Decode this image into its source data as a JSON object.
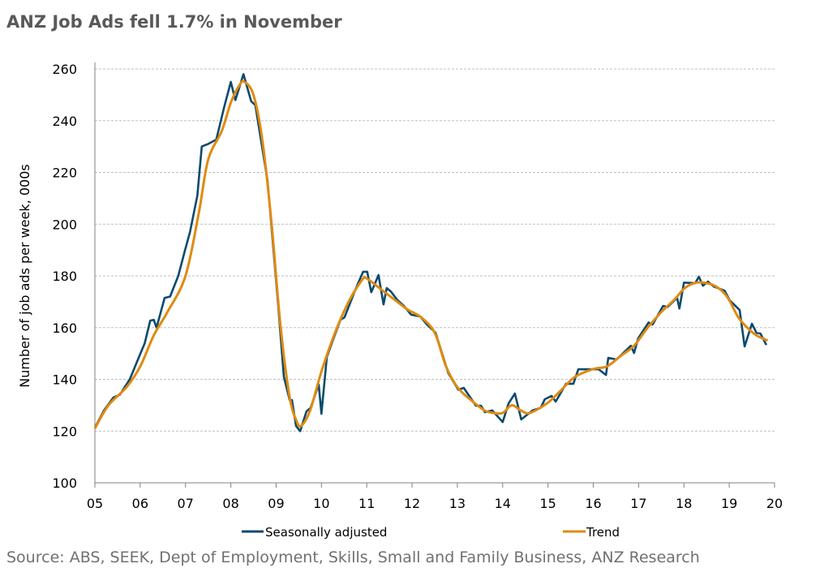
{
  "chart_data": {
    "type": "line",
    "title": "ANZ Job Ads fell 1.7% in November",
    "xlabel": "",
    "ylabel": "Number of job ads per week, 000s",
    "ylim": [
      100,
      260
    ],
    "xlim": [
      5,
      20
    ],
    "yticks": [
      "100",
      "120",
      "140",
      "160",
      "180",
      "200",
      "220",
      "240",
      "260"
    ],
    "xticks": [
      "05",
      "06",
      "07",
      "08",
      "09",
      "10",
      "11",
      "12",
      "13",
      "14",
      "15",
      "16",
      "17",
      "18",
      "19",
      "20"
    ],
    "grid": "horizontal dashed",
    "legend_position": "bottom",
    "colors": {
      "sa": "#0b4a70",
      "trend": "#e08a10",
      "grid": "#bfbfbf",
      "axis": "#808080"
    },
    "series": [
      {
        "name": "Seasonally adjusted",
        "points": [
          [
            5.0,
            121.3
          ],
          [
            5.2,
            128
          ],
          [
            5.41,
            133
          ],
          [
            5.55,
            134
          ],
          [
            5.77,
            140
          ],
          [
            5.95,
            147.7
          ],
          [
            6.1,
            154
          ],
          [
            6.22,
            162.7
          ],
          [
            6.3,
            163
          ],
          [
            6.36,
            160
          ],
          [
            6.54,
            171.5
          ],
          [
            6.66,
            172
          ],
          [
            6.84,
            180
          ],
          [
            6.99,
            190
          ],
          [
            7.1,
            197
          ],
          [
            7.26,
            211
          ],
          [
            7.36,
            230
          ],
          [
            7.5,
            231
          ],
          [
            7.68,
            232.7
          ],
          [
            7.85,
            245
          ],
          [
            8.0,
            255
          ],
          [
            8.1,
            248
          ],
          [
            8.28,
            258
          ],
          [
            8.45,
            247.5
          ],
          [
            8.54,
            246
          ],
          [
            8.69,
            230
          ],
          [
            8.81,
            216.7
          ],
          [
            9.05,
            167.5
          ],
          [
            9.17,
            141
          ],
          [
            9.3,
            132
          ],
          [
            9.35,
            132
          ],
          [
            9.44,
            122
          ],
          [
            9.53,
            120
          ],
          [
            9.67,
            127.6
          ],
          [
            9.76,
            129
          ],
          [
            9.94,
            138
          ],
          [
            10.0,
            126.7
          ],
          [
            10.12,
            148.6
          ],
          [
            10.25,
            155
          ],
          [
            10.42,
            163
          ],
          [
            10.51,
            164
          ],
          [
            10.75,
            174.7
          ],
          [
            10.92,
            181.6
          ],
          [
            11.01,
            181.6
          ],
          [
            11.1,
            173.7
          ],
          [
            11.26,
            180.3
          ],
          [
            11.37,
            169
          ],
          [
            11.44,
            175.3
          ],
          [
            11.53,
            174
          ],
          [
            11.68,
            170.6
          ],
          [
            11.82,
            168.4
          ],
          [
            11.98,
            165
          ],
          [
            12.18,
            164.3
          ],
          [
            12.34,
            161
          ],
          [
            12.52,
            158
          ],
          [
            12.8,
            142.4
          ],
          [
            13.02,
            136
          ],
          [
            13.14,
            136.7
          ],
          [
            13.41,
            129.8
          ],
          [
            13.52,
            129.8
          ],
          [
            13.61,
            127.3
          ],
          [
            13.77,
            128
          ],
          [
            14.0,
            123.5
          ],
          [
            14.13,
            130.7
          ],
          [
            14.27,
            134.5
          ],
          [
            14.41,
            124.5
          ],
          [
            14.66,
            128
          ],
          [
            14.84,
            129
          ],
          [
            14.93,
            132.3
          ],
          [
            15.08,
            133.6
          ],
          [
            15.17,
            131.4
          ],
          [
            15.4,
            138.3
          ],
          [
            15.56,
            138.3
          ],
          [
            15.67,
            143.9
          ],
          [
            16.12,
            143.9
          ],
          [
            16.28,
            141.7
          ],
          [
            16.33,
            148.3
          ],
          [
            16.51,
            147.7
          ],
          [
            16.83,
            153
          ],
          [
            16.9,
            150.2
          ],
          [
            16.99,
            155.8
          ],
          [
            17.22,
            162
          ],
          [
            17.31,
            161.2
          ],
          [
            17.54,
            168.4
          ],
          [
            17.64,
            168
          ],
          [
            17.85,
            171.5
          ],
          [
            17.9,
            167.4
          ],
          [
            18.0,
            177.4
          ],
          [
            18.25,
            177.2
          ],
          [
            18.33,
            179.7
          ],
          [
            18.42,
            176.2
          ],
          [
            18.53,
            177.8
          ],
          [
            18.66,
            175.9
          ],
          [
            18.9,
            174.3
          ],
          [
            19.01,
            170.6
          ],
          [
            19.23,
            166.8
          ],
          [
            19.34,
            152.7
          ],
          [
            19.5,
            161.5
          ],
          [
            19.6,
            158
          ],
          [
            19.69,
            157.7
          ],
          [
            19.82,
            153.3
          ]
        ]
      },
      {
        "name": "Trend",
        "points": [
          [
            5.0,
            121
          ],
          [
            5.3,
            130
          ],
          [
            5.7,
            137
          ],
          [
            6.0,
            145
          ],
          [
            6.3,
            157
          ],
          [
            6.6,
            166
          ],
          [
            7.0,
            180
          ],
          [
            7.3,
            205
          ],
          [
            7.5,
            225
          ],
          [
            7.8,
            236
          ],
          [
            8.0,
            247
          ],
          [
            8.2,
            254
          ],
          [
            8.3,
            255
          ],
          [
            8.5,
            250
          ],
          [
            8.7,
            232
          ],
          [
            8.9,
            200
          ],
          [
            9.1,
            160
          ],
          [
            9.3,
            133
          ],
          [
            9.45,
            124
          ],
          [
            9.55,
            122
          ],
          [
            9.75,
            128
          ],
          [
            10.0,
            143
          ],
          [
            10.3,
            158
          ],
          [
            10.6,
            170
          ],
          [
            10.9,
            178.5
          ],
          [
            11.0,
            179
          ],
          [
            11.3,
            175
          ],
          [
            11.6,
            171
          ],
          [
            11.9,
            167
          ],
          [
            12.2,
            164
          ],
          [
            12.5,
            158
          ],
          [
            12.75,
            145
          ],
          [
            13.0,
            137
          ],
          [
            13.3,
            132
          ],
          [
            13.6,
            128
          ],
          [
            13.8,
            127
          ],
          [
            14.0,
            127
          ],
          [
            14.2,
            130
          ],
          [
            14.4,
            128
          ],
          [
            14.6,
            127
          ],
          [
            15.0,
            131
          ],
          [
            15.3,
            136
          ],
          [
            15.6,
            141
          ],
          [
            16.0,
            144
          ],
          [
            16.3,
            145
          ],
          [
            16.6,
            149
          ],
          [
            16.9,
            153
          ],
          [
            17.2,
            160
          ],
          [
            17.5,
            166
          ],
          [
            17.8,
            171
          ],
          [
            18.0,
            175
          ],
          [
            18.2,
            177
          ],
          [
            18.4,
            177.5
          ],
          [
            18.7,
            176
          ],
          [
            18.95,
            172
          ],
          [
            19.2,
            164
          ],
          [
            19.4,
            160
          ],
          [
            19.6,
            157
          ],
          [
            19.85,
            155
          ]
        ]
      }
    ],
    "source": "Source: ABS, SEEK, Dept of Employment, Skills, Small and Family Business, ANZ Research"
  }
}
